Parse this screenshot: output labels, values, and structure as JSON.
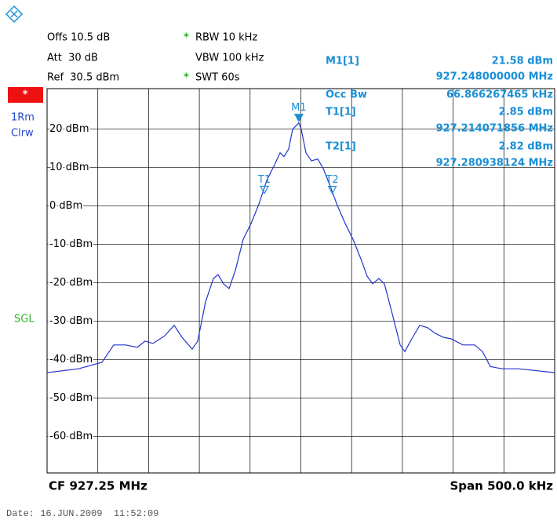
{
  "settings": {
    "offset": "Offs 10.5 dB",
    "attenuation": "Att  30 dB",
    "reference": "Ref  30.5 dBm",
    "rbw_flag": "*",
    "rbw": "RBW 10 kHz",
    "vbw": "VBW 100 kHz",
    "swt_flag": "*",
    "swt": "SWT 60s"
  },
  "trace_info": {
    "flag": "*",
    "detector": "1Rm",
    "mode": "Clrw",
    "sweep": "SGL"
  },
  "date": "Date: 16.JUN.2009  11:52:09",
  "chart_data": {
    "type": "line",
    "x": [
      927.0,
      927.0309,
      927.0541,
      927.0657,
      927.0773,
      927.0889,
      927.0966,
      927.1043,
      927.1159,
      927.1252,
      927.1329,
      927.143,
      927.1484,
      927.1561,
      927.1638,
      927.1685,
      927.1739,
      927.1793,
      927.1855,
      927.1932,
      927.2009,
      927.2087,
      927.2164,
      927.2241,
      927.2295,
      927.2334,
      927.238,
      927.2419,
      927.248,
      927.2504,
      927.255,
      927.2604,
      927.2666,
      927.272,
      927.2782,
      927.2859,
      927.2937,
      927.3014,
      927.3091,
      927.3153,
      927.3207,
      927.3269,
      927.3323,
      927.34,
      927.3478,
      927.3524,
      927.3593,
      927.3671,
      927.3748,
      927.3825,
      927.3903,
      927.398,
      927.4096,
      927.4212,
      927.4289,
      927.4366,
      927.4482,
      927.4637,
      927.4791,
      927.5
    ],
    "values": [
      -43.4,
      -42.4,
      -40.7,
      -36.2,
      -36.2,
      -36.8,
      -35.2,
      -35.8,
      -33.8,
      -31.1,
      -34.2,
      -37.3,
      -35.2,
      -25.0,
      -18.9,
      -17.9,
      -20.3,
      -21.5,
      -16.8,
      -8.7,
      -4.6,
      0.5,
      6.6,
      10.7,
      13.8,
      12.8,
      14.8,
      19.9,
      21.58,
      19.9,
      13.8,
      11.7,
      12.2,
      9.7,
      5.6,
      0.1,
      -4.6,
      -8.7,
      -13.8,
      -18.3,
      -20.3,
      -18.9,
      -20.3,
      -28.1,
      -36.2,
      -37.9,
      -34.6,
      -31.1,
      -31.7,
      -33.2,
      -34.2,
      -34.6,
      -36.2,
      -36.2,
      -37.9,
      -41.8,
      -42.4,
      -42.4,
      -42.8,
      -43.4
    ],
    "color": "#2233cc",
    "xlim": [
      927.0,
      927.5
    ],
    "xticks": [
      927.05,
      927.1,
      927.15,
      927.2,
      927.25,
      927.3,
      927.35,
      927.4,
      927.45
    ],
    "ylim": [
      -69.5,
      30.5
    ],
    "yticks": [
      {
        "value": 20,
        "label": "20 dBm"
      },
      {
        "value": 10,
        "label": "10 dBm"
      },
      {
        "value": 0,
        "label": "0 dBm"
      },
      {
        "value": -10,
        "label": "-10 dBm"
      },
      {
        "value": -20,
        "label": "-20 dBm"
      },
      {
        "value": -30,
        "label": "-30 dBm"
      },
      {
        "value": -40,
        "label": "-40 dBm"
      },
      {
        "value": -50,
        "label": "-50 dBm"
      },
      {
        "value": -60,
        "label": "-60 dBm"
      }
    ],
    "grid": true,
    "center_label": "CF 927.25 MHz",
    "span_label": "Span 500.0 kHz",
    "markers": [
      {
        "name": "M1",
        "readout": "M1[1]",
        "x": 927.248,
        "x_label": "927.248000000 MHz",
        "y": 21.58,
        "y_label": "21.58 dBm"
      },
      {
        "name": "T1",
        "readout": "T1[1]",
        "x": 927.214071856,
        "x_label": "927.214071856 MHz",
        "y": 2.85,
        "y_label": "2.85 dBm"
      },
      {
        "name": "T2",
        "readout": "T2[1]",
        "x": 927.280938124,
        "x_label": "927.280938124 MHz",
        "y": 2.82,
        "y_label": "2.82 dBm"
      }
    ],
    "occupied_bandwidth": {
      "label": "Occ Bw",
      "value": 66.866267465,
      "value_label": "66.866267465 kHz"
    }
  }
}
